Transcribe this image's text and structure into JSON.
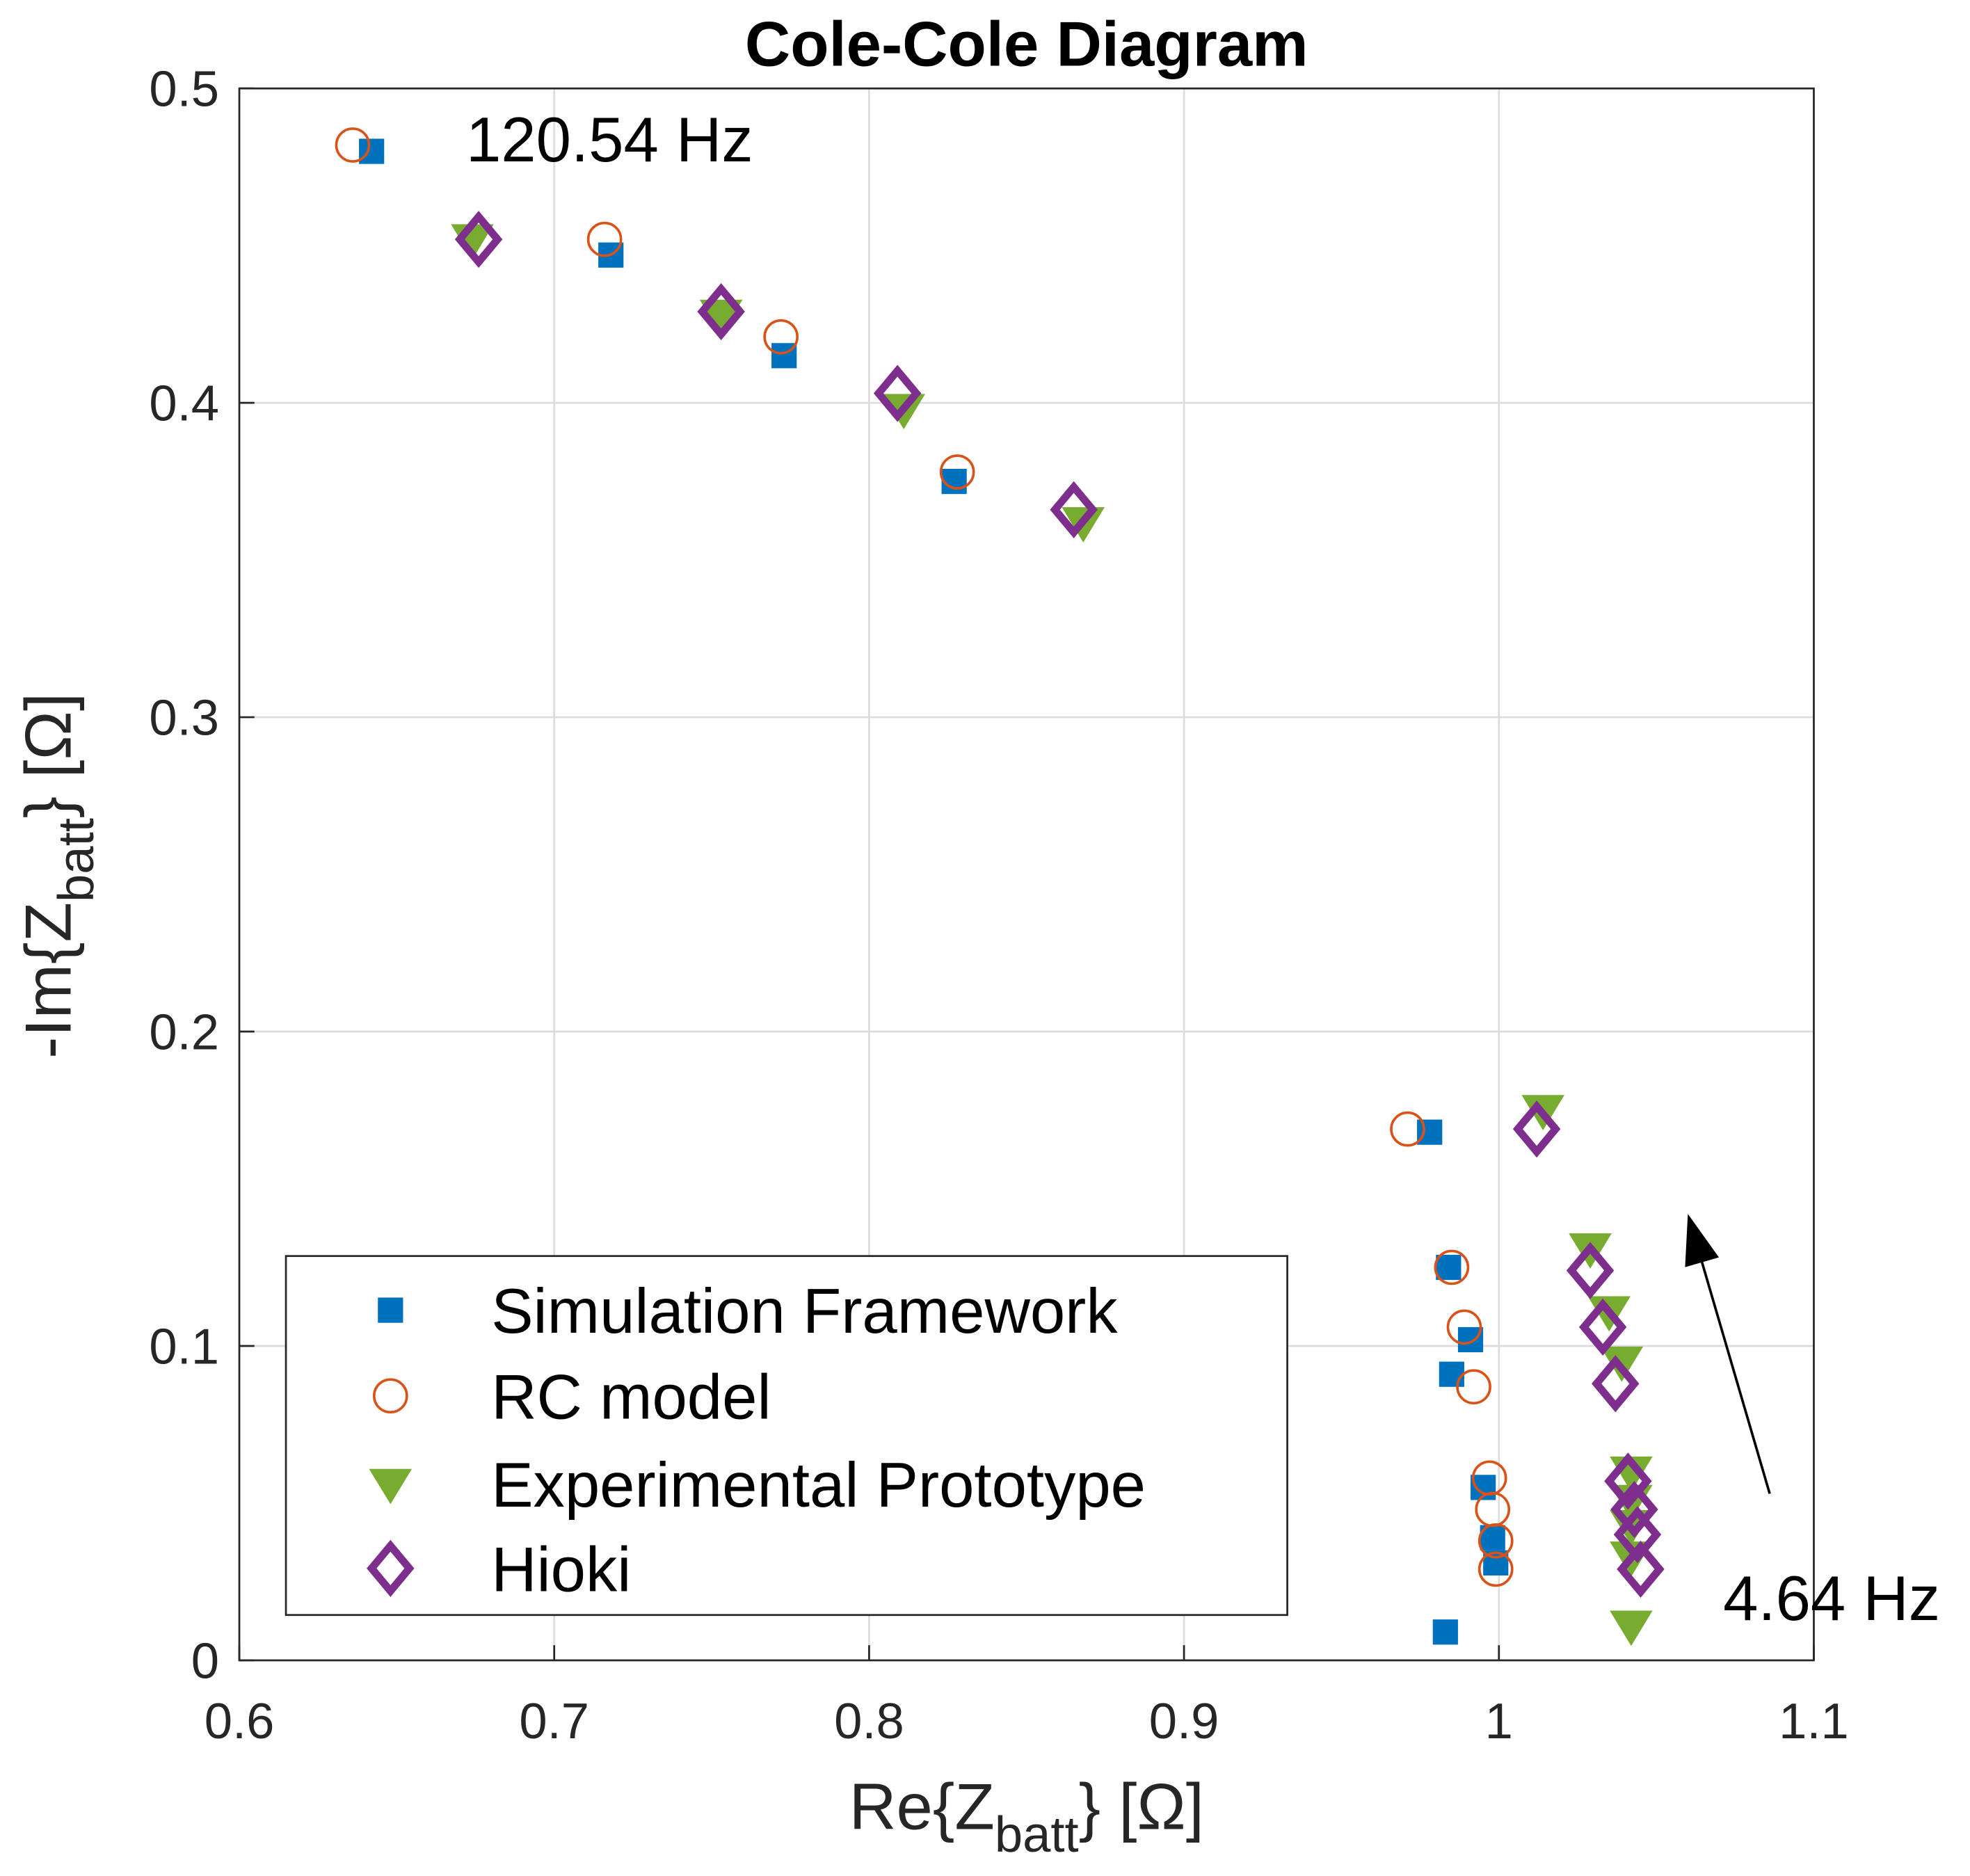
{
  "chart_data": {
    "type": "scatter",
    "title": "Cole-Cole Diagram",
    "xlabel": {
      "main": "Re{Z",
      "sub": "batt",
      "tail": "} [Ω]"
    },
    "ylabel": {
      "main": "-Im{Z",
      "sub": "batt",
      "tail": "} [Ω]"
    },
    "xlim": [
      0.6,
      1.1
    ],
    "ylim": [
      0,
      0.5
    ],
    "xticks": [
      "0.6",
      "0.7",
      "0.8",
      "0.9",
      "1",
      "1.1"
    ],
    "yticks": [
      "0",
      "0.1",
      "0.2",
      "0.3",
      "0.4",
      "0.5"
    ],
    "grid": true,
    "legend_position": "bottom-left",
    "annotations": [
      {
        "text": "120.54 Hz",
        "x": 0.672,
        "y": 0.482
      },
      {
        "text": "4.64 Hz",
        "x": 1.072,
        "y": 0.013
      }
    ],
    "arrow": {
      "from": [
        1.086,
        0.053
      ],
      "to": [
        1.06,
        0.142
      ]
    },
    "series": [
      {
        "name": "Simulation Framework",
        "marker": "square",
        "color": "#0072BD",
        "x": [
          0.642,
          0.718,
          0.773,
          0.827,
          0.978,
          0.984,
          0.991,
          0.985,
          0.995,
          0.998,
          0.999,
          0.983
        ],
        "y": [
          0.48,
          0.447,
          0.415,
          0.375,
          0.168,
          0.125,
          0.102,
          0.091,
          0.055,
          0.039,
          0.031,
          0.009
        ]
      },
      {
        "name": "RC model",
        "marker": "circle",
        "color": "#D95319",
        "x": [
          0.636,
          0.716,
          0.772,
          0.828,
          0.971,
          0.985,
          0.989,
          0.992,
          0.997,
          0.998,
          0.999,
          0.999
        ],
        "y": [
          0.482,
          0.452,
          0.421,
          0.378,
          0.169,
          0.125,
          0.106,
          0.087,
          0.058,
          0.048,
          0.038,
          0.029
        ]
      },
      {
        "name": "Experimental Prototype",
        "marker": "triangle-down",
        "color": "#77AC30",
        "x": [
          0.674,
          0.753,
          0.811,
          0.868,
          1.014,
          1.029,
          1.035,
          1.039,
          1.042,
          1.042,
          1.042,
          1.042,
          1.042
        ],
        "y": [
          0.452,
          0.428,
          0.398,
          0.362,
          0.175,
          0.131,
          0.111,
          0.095,
          0.06,
          0.051,
          0.043,
          0.033,
          0.011
        ]
      },
      {
        "name": "Hioki",
        "marker": "diamond",
        "color": "#7E2F8E",
        "x": [
          0.676,
          0.753,
          0.809,
          0.865,
          1.012,
          1.029,
          1.033,
          1.037,
          1.041,
          1.043,
          1.044,
          1.045
        ],
        "y": [
          0.452,
          0.429,
          0.403,
          0.366,
          0.169,
          0.124,
          0.106,
          0.088,
          0.057,
          0.048,
          0.04,
          0.029
        ]
      }
    ]
  }
}
